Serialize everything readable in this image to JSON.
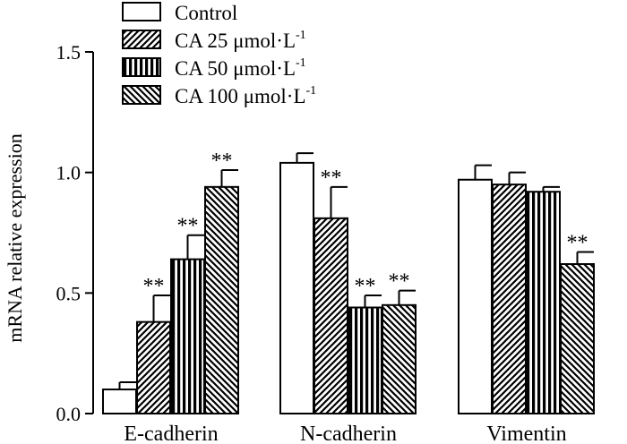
{
  "chart_data": {
    "type": "bar",
    "title": "",
    "xlabel": "",
    "ylabel": "mRNA relative expression",
    "ylim": [
      0,
      1.5
    ],
    "yticks": [
      0.0,
      0.5,
      1.0,
      1.5
    ],
    "ytick_labels": [
      "0.0",
      "0.5",
      "1.0",
      "1.5"
    ],
    "categories": [
      "E-cadherin",
      "N-cadherin",
      "Vimentin"
    ],
    "legend_position": "top-left",
    "series": [
      {
        "name": "Control",
        "label_main": "Control",
        "label_sup": "",
        "pattern": "solid-white",
        "values": [
          0.1,
          1.04,
          0.97
        ],
        "errors": [
          0.03,
          0.04,
          0.06
        ],
        "significance": [
          "",
          "",
          ""
        ]
      },
      {
        "name": "CA 25 μmol·L-1",
        "label_main": "CA 25 μmol·L",
        "label_sup": "-1",
        "pattern": "diagonal-forward",
        "values": [
          0.38,
          0.81,
          0.95
        ],
        "errors": [
          0.11,
          0.13,
          0.05
        ],
        "significance": [
          "**",
          "**",
          ""
        ]
      },
      {
        "name": "CA 50 μmol·L-1",
        "label_main": "CA 50 μmol·L",
        "label_sup": "-1",
        "pattern": "vertical",
        "values": [
          0.64,
          0.44,
          0.92
        ],
        "errors": [
          0.1,
          0.05,
          0.02
        ],
        "significance": [
          "**",
          "**",
          ""
        ]
      },
      {
        "name": "CA 100 μmol·L-1",
        "label_main": "CA 100 μmol·L",
        "label_sup": "-1",
        "pattern": "diagonal-backward",
        "values": [
          0.94,
          0.45,
          0.62
        ],
        "errors": [
          0.07,
          0.06,
          0.05
        ],
        "significance": [
          "**",
          "**",
          "**"
        ]
      }
    ]
  },
  "colors": {
    "stroke": "#000000",
    "fill": "#ffffff"
  }
}
